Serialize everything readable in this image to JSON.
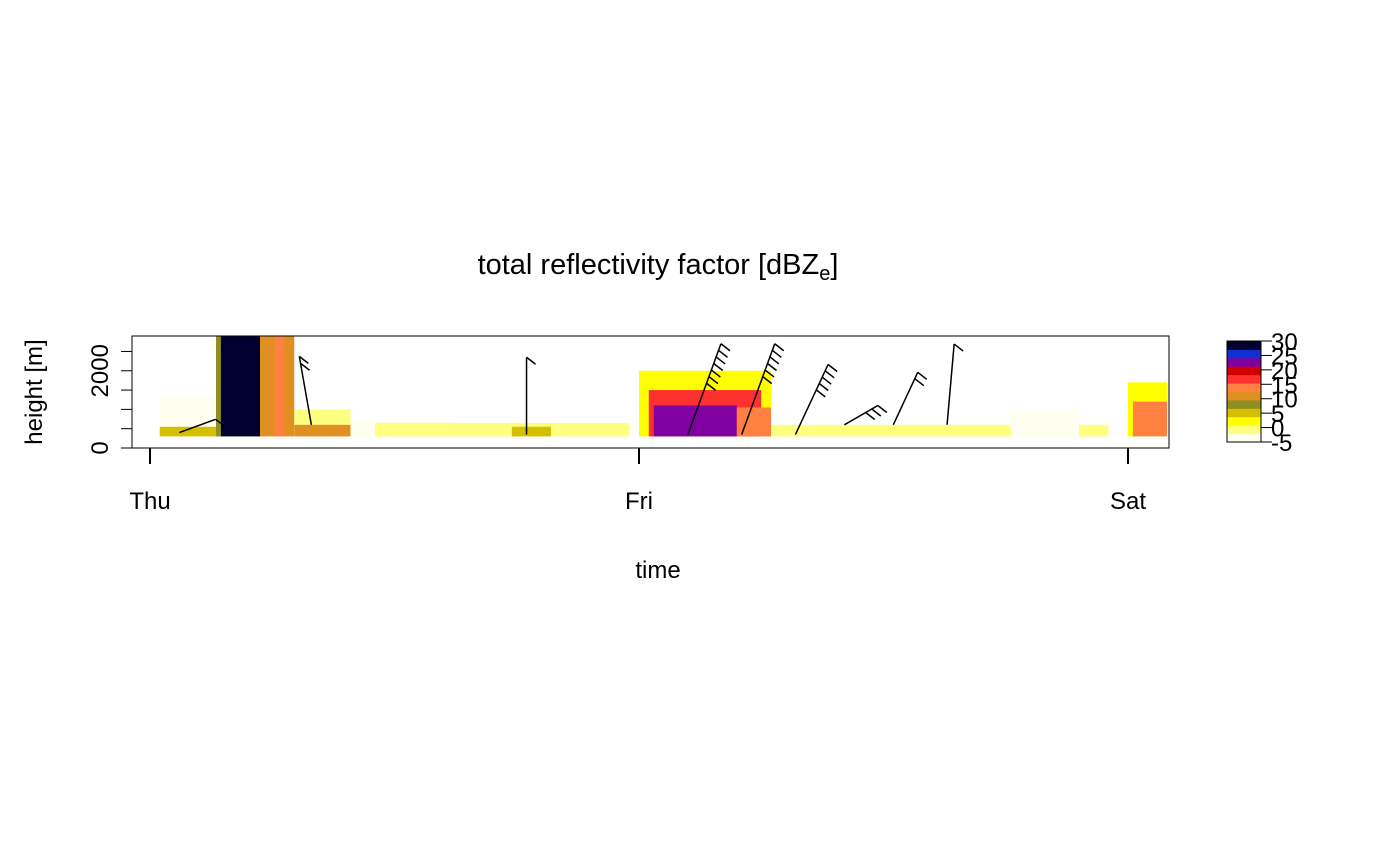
{
  "chart_data": {
    "type": "heatmap",
    "title": "total reflectivity factor [dBZ",
    "title_subscript": "e",
    "title_suffix": "]",
    "xlabel": "time",
    "ylabel": "height [m]",
    "x_ticks": [
      "Thu",
      "Fri",
      "Sat"
    ],
    "x_range_days": [
      0,
      2.08
    ],
    "y_ticks": [
      0,
      2000
    ],
    "y_minor_ticks": [
      0,
      500,
      1000,
      1500,
      2000,
      2500,
      3000
    ],
    "ylim": [
      0,
      2900
    ],
    "colorbar": {
      "ticks": [
        30,
        25,
        20,
        15,
        10,
        5,
        0,
        -5
      ],
      "range": [
        -5,
        30
      ],
      "colors": [
        "#fffff0",
        "#ffff80",
        "#ffff00",
        "#d4c000",
        "#8f8f20",
        "#e09020",
        "#ff8040",
        "#ff3030",
        "#d00000",
        "#8000a0",
        "#1030d0",
        "#000030"
      ]
    },
    "blocks": [
      {
        "t0": 0.02,
        "t1": 0.14,
        "h0": 300,
        "h1": 1300,
        "dbz": -3
      },
      {
        "t0": 0.02,
        "t1": 0.14,
        "h0": 300,
        "h1": 550,
        "dbz": 4
      },
      {
        "t0": 0.135,
        "t1": 0.15,
        "h0": 300,
        "h1": 2900,
        "dbz": 8
      },
      {
        "t0": 0.145,
        "t1": 0.225,
        "h0": 300,
        "h1": 2900,
        "dbz": 28
      },
      {
        "t0": 0.225,
        "t1": 0.295,
        "h0": 300,
        "h1": 2900,
        "dbz": 10
      },
      {
        "t0": 0.255,
        "t1": 0.275,
        "h0": 300,
        "h1": 2900,
        "dbz": 14
      },
      {
        "t0": 0.295,
        "t1": 0.41,
        "h0": 300,
        "h1": 1000,
        "dbz": -2
      },
      {
        "t0": 0.295,
        "t1": 0.41,
        "h0": 300,
        "h1": 600,
        "dbz": 10
      },
      {
        "t0": 0.41,
        "t1": 0.62,
        "h0": 300,
        "h1": 700,
        "dbz": -4
      },
      {
        "t0": 0.46,
        "t1": 0.98,
        "h0": 300,
        "h1": 650,
        "dbz": -1
      },
      {
        "t0": 0.74,
        "t1": 0.82,
        "h0": 300,
        "h1": 550,
        "dbz": 6
      },
      {
        "t0": 1.0,
        "t1": 1.27,
        "h0": 300,
        "h1": 2000,
        "dbz": 2
      },
      {
        "t0": 1.02,
        "t1": 1.25,
        "h0": 300,
        "h1": 1500,
        "dbz": 16
      },
      {
        "t0": 1.03,
        "t1": 1.2,
        "h0": 300,
        "h1": 1100,
        "dbz": 22
      },
      {
        "t0": 1.2,
        "t1": 1.27,
        "h0": 300,
        "h1": 1050,
        "dbz": 15
      },
      {
        "t0": 1.27,
        "t1": 1.96,
        "h0": 300,
        "h1": 600,
        "dbz": -2
      },
      {
        "t0": 1.76,
        "t1": 1.9,
        "h0": 300,
        "h1": 1000,
        "dbz": -4
      },
      {
        "t0": 2.0,
        "t1": 2.08,
        "h0": 300,
        "h1": 1700,
        "dbz": 2
      },
      {
        "t0": 2.01,
        "t1": 2.08,
        "h0": 300,
        "h1": 1200,
        "dbz": 15
      }
    ],
    "wind_barbs": [
      {
        "t": 0.06,
        "h": 400,
        "dir_deg": 250,
        "len_m": 1000,
        "barbs": 1
      },
      {
        "t": 0.33,
        "h": 600,
        "dir_deg": 170,
        "len_m": 1800,
        "barbs": 2
      },
      {
        "t": 0.77,
        "h": 350,
        "dir_deg": 180,
        "len_m": 2000,
        "barbs": 1
      },
      {
        "t": 1.1,
        "h": 350,
        "dir_deg": 200,
        "len_m": 2500,
        "barbs": 7
      },
      {
        "t": 1.21,
        "h": 350,
        "dir_deg": 200,
        "len_m": 2500,
        "barbs": 6
      },
      {
        "t": 1.32,
        "h": 350,
        "dir_deg": 205,
        "len_m": 2000,
        "barbs": 5
      },
      {
        "t": 1.42,
        "h": 600,
        "dir_deg": 240,
        "len_m": 1000,
        "barbs": 3
      },
      {
        "t": 1.52,
        "h": 600,
        "dir_deg": 205,
        "len_m": 1500,
        "barbs": 2
      },
      {
        "t": 1.63,
        "h": 600,
        "dir_deg": 185,
        "len_m": 2100,
        "barbs": 1
      }
    ]
  }
}
